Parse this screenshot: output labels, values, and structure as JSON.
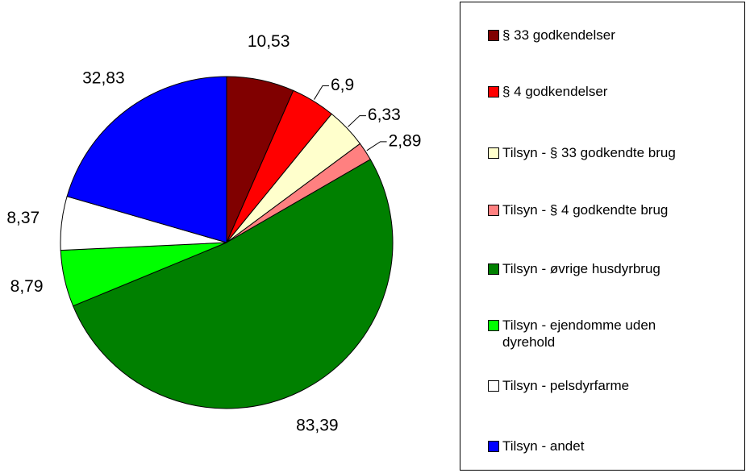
{
  "chart_data": {
    "type": "pie",
    "categories": [
      "§ 33 godkendelser",
      "§ 4 godkendelser",
      "Tilsyn - § 33 godkendte brug",
      "Tilsyn - § 4 godkendte brug",
      "Tilsyn - øvrige husdyrbrug",
      "Tilsyn - ejendomme uden dyrehold",
      "Tilsyn - pelsdyrfarme",
      "Tilsyn - andet"
    ],
    "values": [
      10.53,
      6.9,
      6.33,
      2.89,
      83.39,
      8.79,
      8.37,
      32.83
    ],
    "value_labels": [
      "10,53",
      "6,9",
      "6,33",
      "2,89",
      "83,39",
      "8,79",
      "8,37",
      "32,83"
    ],
    "colors": [
      "#800000",
      "#ff0000",
      "#ffffcc",
      "#ff8080",
      "#008000",
      "#00ff00",
      "#ffffff",
      "#0000ff"
    ]
  }
}
